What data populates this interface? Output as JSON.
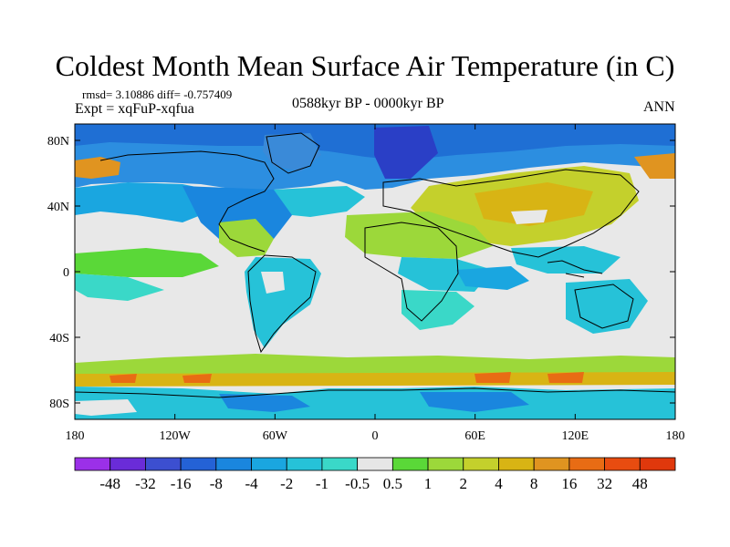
{
  "title": "Coldest Month Mean Surface Air Temperature (in C)",
  "stats": "rmsd= 3.10886  diff= -0.757409",
  "experiment": "Expt = xqFuP-xqfua",
  "period": "0588kyr BP - 0000kyr BP",
  "season": "ANN",
  "map": {
    "lon_ticks": [
      "180",
      "120W",
      "60W",
      "0",
      "60E",
      "120E",
      "180"
    ],
    "lat_ticks": [
      "80N",
      "40N",
      "0",
      "40S",
      "80S"
    ],
    "background_color": "#e8e8e8"
  },
  "colorbar": {
    "colors": [
      "#9b30e8",
      "#6a2cd8",
      "#3c4fd0",
      "#2462d6",
      "#1a86de",
      "#1aa6e0",
      "#26c2d8",
      "#3ad8c8",
      "#e6e6e6",
      "#5ad838",
      "#9cd83a",
      "#c4d02c",
      "#d8b414",
      "#e09420",
      "#e86c14",
      "#e84c10",
      "#e0380c"
    ],
    "labels": [
      "-48",
      "-32",
      "-16",
      "-8",
      "-4",
      "-2",
      "-1",
      "-0.5",
      "0.5",
      "1",
      "2",
      "4",
      "8",
      "16",
      "32",
      "48"
    ]
  }
}
